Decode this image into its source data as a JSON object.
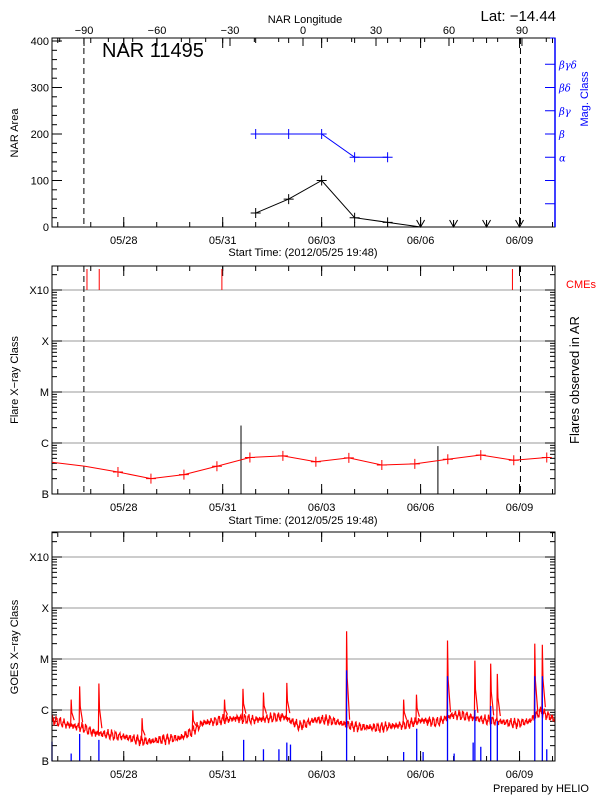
{
  "header": {
    "lat_label": "Lat: −14.44"
  },
  "footer": {
    "credit": "Prepared by HELIO"
  },
  "chart_data": [
    {
      "type": "line",
      "title": "NAR 11495",
      "xlabel": "Start Time: (2012/05/25 19:48)",
      "ylabel": "NAR Area",
      "y2label": "Mag. Class",
      "top_axis_label": "NAR Longitude",
      "top_ticks": [
        "−90",
        "−60",
        "−30",
        "0",
        "30",
        "60",
        "90"
      ],
      "top_tick_values": [
        -90,
        -60,
        -30,
        0,
        30,
        60,
        90
      ],
      "xlim": [
        "2012-05-25 19:48",
        "2012-06-10 01:48"
      ],
      "xticks": [
        "05/28",
        "05/31",
        "06/03",
        "06/06",
        "06/09"
      ],
      "ylim": [
        0,
        400
      ],
      "yticks": [
        "0",
        "100",
        "200",
        "300",
        "400"
      ],
      "y2_ticks": [
        "",
        "",
        "α",
        "β",
        "βγ",
        "βδ",
        "βγδ"
      ],
      "limb_crossings": [
        "2012-05-26 19:00",
        "2012-06-09 00:40"
      ],
      "area": {
        "x": [
          "2012-06-01 00:00",
          "2012-06-02 00:00",
          "2012-06-03 00:00",
          "2012-06-04 00:00",
          "2012-06-05 00:00",
          "2012-06-06 00:00",
          "2012-06-07 00:00",
          "2012-06-08 00:00",
          "2012-06-09 00:00"
        ],
        "y": [
          30,
          60,
          100,
          20,
          10,
          0,
          0,
          0,
          0
        ],
        "color": "#000000"
      },
      "mag_class": {
        "x": [
          "2012-06-01 00:00",
          "2012-06-02 00:00",
          "2012-06-03 00:00",
          "2012-06-04 00:00",
          "2012-06-05 00:00"
        ],
        "y": [
          "β",
          "β",
          "β",
          "α",
          "α"
        ],
        "color": "#0000ff"
      },
      "grid": false
    },
    {
      "type": "line",
      "xlabel": "Start Time: (2012/05/25 19:48)",
      "ylabel": "Flare X−ray Class",
      "y2label": "Flares observed in AR",
      "cme_label": "CMEs",
      "xlim": [
        "2012-05-25 19:48",
        "2012-06-10 01:48"
      ],
      "xticks": [
        "05/28",
        "05/31",
        "06/03",
        "06/06",
        "06/09"
      ],
      "yscale": "log",
      "yticks": [
        "B",
        "C",
        "M",
        "X",
        "X10"
      ],
      "grid": true,
      "limb_crossings": [
        "2012-05-26 19:00",
        "2012-06-09 00:40"
      ],
      "background": {
        "x": [
          "2012-05-25 19:48",
          "2012-05-26 19:48",
          "2012-05-27 19:48",
          "2012-05-28 19:48",
          "2012-05-29 19:48",
          "2012-05-30 19:48",
          "2012-05-31 19:48",
          "2012-06-01 19:48",
          "2012-06-02 19:48",
          "2012-06-03 19:48",
          "2012-06-04 19:48",
          "2012-06-05 19:48",
          "2012-06-06 19:48",
          "2012-06-07 19:48",
          "2012-06-08 19:48",
          "2012-06-09 19:48"
        ],
        "y": [
          "B4.2",
          "B3.5",
          "B2.7",
          "B2.0",
          "B2.4",
          "B3.5",
          "B5.2",
          "B5.6",
          "B4.3",
          "B5.1",
          "B3.7",
          "B3.9",
          "B4.8",
          "B5.8",
          "B4.6",
          "B5.2"
        ],
        "color": "#ff0000"
      },
      "flares": [
        {
          "time": "2012-05-31 13:20",
          "class": "C2.2"
        },
        {
          "time": "2012-06-06 12:36",
          "class": "B8.7"
        }
      ],
      "cmes": [
        "2012-05-26 21:15",
        "2012-05-27 06:10",
        "2012-05-30 23:25",
        "2012-06-08 18:50"
      ],
      "cme_color": "#ff0000"
    },
    {
      "type": "line",
      "ylabel": "GOES X−ray Class",
      "xlim": [
        "2012-05-25 19:48",
        "2012-06-10 01:48"
      ],
      "xticks": [
        "05/28",
        "05/31",
        "06/03",
        "06/06",
        "06/09"
      ],
      "yscale": "log",
      "yticks": [
        "B",
        "C",
        "M",
        "X",
        "X10"
      ],
      "grid": true,
      "long_channel": {
        "color": "#ff0000",
        "x": [
          "2012-05-25 19:48",
          "2012-05-26 07:00",
          "2012-05-26 18:00",
          "2012-05-27 02:30",
          "2012-05-27 12:00",
          "2012-05-28 00:00",
          "2012-05-28 09:00",
          "2012-05-28 19:00",
          "2012-05-29 06:00",
          "2012-05-29 17:00",
          "2012-05-30 01:30",
          "2012-05-30 10:00",
          "2012-05-31 00:00",
          "2012-05-31 11:00",
          "2012-05-31 22:00",
          "2012-06-01 09:30",
          "2012-06-01 20:30",
          "2012-06-02 07:45",
          "2012-06-02 19:00",
          "2012-06-03 06:00",
          "2012-06-03 17:00",
          "2012-06-04 04:30",
          "2012-06-04 15:30",
          "2012-06-05 02:45",
          "2012-06-05 14:00",
          "2012-06-06 01:00",
          "2012-06-06 12:15",
          "2012-06-06 23:30",
          "2012-06-07 10:30",
          "2012-06-07 21:40",
          "2012-06-08 08:50",
          "2012-06-08 20:00",
          "2012-06-09 07:10",
          "2012-06-09 15:30",
          "2012-06-10 01:48"
        ],
        "y": [
          "B6.4",
          "B5.2",
          "B4.5",
          "B3.6",
          "B3.3",
          "B3.0",
          "B2.6",
          "B2.4",
          "B2.7",
          "B2.8",
          "B3.8",
          "B5.6",
          "B6.4",
          "B6.9",
          "B6.4",
          "B6.9",
          "B7.5",
          "B4.8",
          "B6.4",
          "B6.4",
          "B5.2",
          "B4.6",
          "B4.5",
          "B4.8",
          "B5.2",
          "B6.3",
          "B5.7",
          "B8.1",
          "B7.5",
          "B6.4",
          "B6.0",
          "B5.4",
          "B6.0",
          "B9.4",
          "B6.4"
        ],
        "peaks": [
          {
            "time": "2012-05-26 09:45",
            "class": "C1.6"
          },
          {
            "time": "2012-05-26 15:55",
            "class": "C2.9"
          },
          {
            "time": "2012-05-27 05:55",
            "class": "C3.3"
          },
          {
            "time": "2012-05-28 13:20",
            "class": "B6.9"
          },
          {
            "time": "2012-05-30 02:15",
            "class": "B9.8"
          },
          {
            "time": "2012-05-31 01:20",
            "class": "C1.6"
          },
          {
            "time": "2012-05-31 14:45",
            "class": "C2.6"
          },
          {
            "time": "2012-06-01 05:40",
            "class": "C2.2"
          },
          {
            "time": "2012-06-01 22:40",
            "class": "C3.4"
          },
          {
            "time": "2012-06-03 18:10",
            "class": "M3.5"
          },
          {
            "time": "2012-06-05 11:40",
            "class": "C1.6"
          },
          {
            "time": "2012-06-05 21:00",
            "class": "C2.0"
          },
          {
            "time": "2012-06-06 19:35",
            "class": "M2.3"
          },
          {
            "time": "2012-06-07 15:30",
            "class": "C9.3"
          },
          {
            "time": "2012-06-08 03:00",
            "class": "C8.1"
          },
          {
            "time": "2012-06-08 07:50",
            "class": "C5.1"
          },
          {
            "time": "2012-06-09 11:05",
            "class": "M2.0"
          },
          {
            "time": "2012-06-09 16:35",
            "class": "M1.9"
          }
        ]
      },
      "short_channel": {
        "color": "#0000ff",
        "peaks": [
          {
            "time": "2012-05-25 19:48",
            "class": "B2.4"
          },
          {
            "time": "2012-05-26 09:45",
            "class": "B1.4"
          },
          {
            "time": "2012-05-26 15:55",
            "class": "B3.4"
          },
          {
            "time": "2012-05-27 05:55",
            "class": "B2.6"
          },
          {
            "time": "2012-05-31 15:15",
            "class": "B2.6"
          },
          {
            "time": "2012-06-01 05:40",
            "class": "B1.7"
          },
          {
            "time": "2012-06-01 16:55",
            "class": "B1.7"
          },
          {
            "time": "2012-06-01 22:40",
            "class": "B2.3"
          },
          {
            "time": "2012-06-02 01:20",
            "class": "B2.1"
          },
          {
            "time": "2012-06-03 18:10",
            "class": "C6.0"
          },
          {
            "time": "2012-06-05 11:40",
            "class": "B1.5"
          },
          {
            "time": "2012-06-05 21:10",
            "class": "B4.3"
          },
          {
            "time": "2012-06-06 01:50",
            "class": "B1.5"
          },
          {
            "time": "2012-06-06 19:35",
            "class": "C4.6"
          },
          {
            "time": "2012-06-07 00:25",
            "class": "B1.4"
          },
          {
            "time": "2012-06-07 14:15",
            "class": "B2.3"
          },
          {
            "time": "2012-06-07 15:30",
            "class": "C1.0"
          },
          {
            "time": "2012-06-07 19:48",
            "class": "B1.9"
          },
          {
            "time": "2012-06-08 03:00",
            "class": "C1.2"
          },
          {
            "time": "2012-06-08 07:50",
            "class": "B6.0"
          },
          {
            "time": "2012-06-09 11:05",
            "class": "C4.6"
          },
          {
            "time": "2012-06-09 16:35",
            "class": "C4.6"
          },
          {
            "time": "2012-06-09 19:48",
            "class": "B1.7"
          }
        ]
      }
    }
  ]
}
